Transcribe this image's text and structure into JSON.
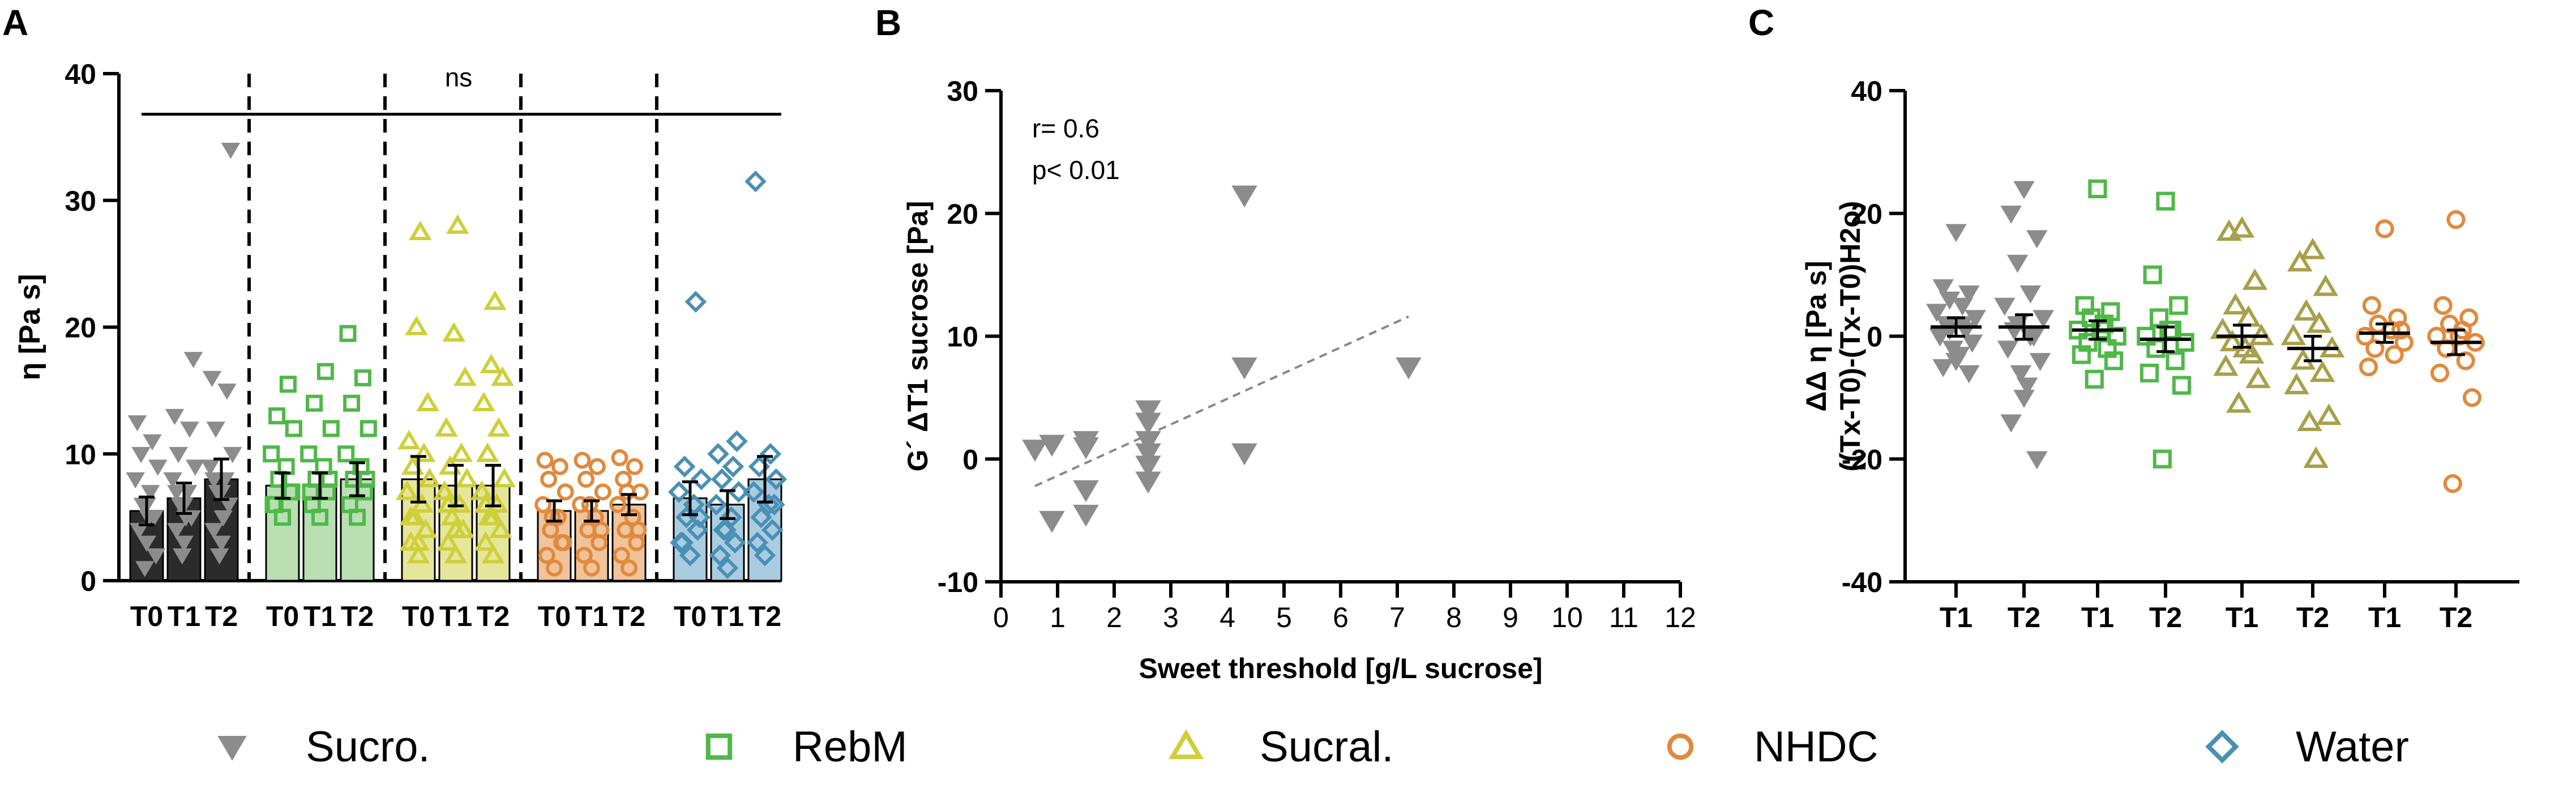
{
  "colors": {
    "sucrose": "#8c8c8c",
    "rebm": "#4fb848",
    "sucral": "#cfcf3a",
    "nhdc": "#e08a3e",
    "water": "#4a8fb5",
    "bar_sucrose": "#2b2b2b",
    "bar_rebm": "#b9dfb2",
    "bar_sucral": "#e6e69a",
    "bar_nhdc": "#f1c39a",
    "bar_water": "#a9cce0",
    "sucral_C": "#a8a04a"
  },
  "legend": [
    {
      "key": "sucrose",
      "label": "Sucro.",
      "marker": "triangle-down"
    },
    {
      "key": "rebm",
      "label": "RebM",
      "marker": "square"
    },
    {
      "key": "sucral",
      "label": "Sucral.",
      "marker": "triangle-up"
    },
    {
      "key": "nhdc",
      "label": "NHDC",
      "marker": "circle"
    },
    {
      "key": "water",
      "label": "Water",
      "marker": "diamond"
    }
  ],
  "chart_data": [
    {
      "panel": "A",
      "type": "bar",
      "ylabel": "η [Pa s]",
      "ylim": [
        0,
        40
      ],
      "yticks": [
        0,
        10,
        20,
        30,
        40
      ],
      "annotation": "ns",
      "groups": [
        {
          "key": "sucrose",
          "categories": [
            "T0",
            "T1",
            "T2"
          ],
          "means": [
            5.5,
            6.5,
            8.0
          ],
          "sem": [
            1.1,
            1.2,
            1.6
          ],
          "points": [
            [
              3,
              4,
              5,
              6,
              7,
              8,
              9,
              10,
              11,
              12.5,
              2,
              1,
              5,
              6,
              4
            ],
            [
              3,
              4,
              5,
              6,
              7,
              8,
              9,
              10,
              12,
              13,
              17.5,
              2,
              5,
              6,
              7
            ],
            [
              3,
              4,
              6,
              7,
              8,
              9,
              10,
              12,
              15,
              16,
              34,
              2,
              5,
              7,
              8
            ]
          ]
        },
        {
          "key": "rebm",
          "categories": [
            "T0",
            "T1",
            "T2"
          ],
          "means": [
            7.5,
            7.5,
            8.0
          ],
          "sem": [
            1.0,
            1.0,
            1.3
          ],
          "points": [
            [
              5,
              6,
              7,
              8,
              9,
              10,
              12,
              13,
              15.5,
              6,
              7
            ],
            [
              5,
              6,
              7,
              8,
              9,
              10,
              12,
              14,
              16.5,
              7,
              8
            ],
            [
              5,
              6,
              7,
              8,
              9,
              10,
              12,
              14,
              16,
              19.5,
              8
            ]
          ]
        },
        {
          "key": "sucral",
          "categories": [
            "T0",
            "T1",
            "T2"
          ],
          "means": [
            8.0,
            7.5,
            7.5
          ],
          "sem": [
            1.8,
            1.6,
            1.6
          ],
          "points": [
            [
              2,
              3,
              4,
              5,
              6,
              7,
              8,
              9,
              10,
              11,
              14,
              20,
              27.5,
              3,
              5
            ],
            [
              2,
              3,
              4,
              5,
              6,
              7,
              8,
              9,
              10,
              12,
              16,
              19.5,
              28,
              4,
              6
            ],
            [
              2,
              3,
              4,
              5,
              6,
              7,
              8,
              10,
              12,
              14,
              16,
              17,
              22,
              5,
              6
            ]
          ]
        },
        {
          "key": "nhdc",
          "categories": [
            "T0",
            "T1",
            "T2"
          ],
          "means": [
            5.5,
            5.5,
            6.0
          ],
          "sem": [
            0.8,
            0.8,
            0.8
          ],
          "points": [
            [
              1,
              2,
              3,
              4,
              5,
              6,
              7,
              8,
              9,
              9.5,
              3,
              5
            ],
            [
              1,
              2,
              3,
              4,
              5,
              6,
              7,
              8,
              9,
              9.5,
              4,
              6
            ],
            [
              1,
              2,
              3,
              4,
              5,
              6,
              7,
              8,
              9,
              9.7,
              4,
              7
            ]
          ]
        },
        {
          "key": "water",
          "categories": [
            "T0",
            "T1",
            "T2"
          ],
          "means": [
            6.5,
            6.0,
            8.0
          ],
          "sem": [
            1.3,
            1.1,
            1.8
          ],
          "points": [
            [
              2,
              3,
              4,
              5,
              6,
              7,
              8,
              9,
              22,
              3,
              5
            ],
            [
              1,
              2,
              3,
              4,
              5,
              6,
              7,
              8,
              9,
              10,
              11,
              4
            ],
            [
              2,
              3,
              4,
              5,
              6,
              7,
              8,
              9,
              10,
              31.5,
              6
            ]
          ]
        }
      ]
    },
    {
      "panel": "B",
      "type": "scatter",
      "xlabel": "Sweet threshold [g/L sucrose]",
      "ylabel": "G´ ΔT1 sucrose [Pa]",
      "xlim": [
        0,
        12
      ],
      "ylim": [
        -10,
        30
      ],
      "xticks": [
        0,
        1,
        2,
        3,
        4,
        5,
        6,
        7,
        8,
        9,
        10,
        11,
        12
      ],
      "yticks": [
        -10,
        0,
        10,
        20,
        30
      ],
      "stat_r": "r= 0.6",
      "stat_p": "p< 0.01",
      "points": [
        [
          0.6,
          0.8
        ],
        [
          0.9,
          1.2
        ],
        [
          0.9,
          -5.0
        ],
        [
          1.5,
          1.5
        ],
        [
          1.5,
          1.0
        ],
        [
          1.5,
          -2.5
        ],
        [
          1.5,
          -4.5
        ],
        [
          2.6,
          4.0
        ],
        [
          2.6,
          3.0
        ],
        [
          2.6,
          1.5
        ],
        [
          2.6,
          0.5
        ],
        [
          2.6,
          -0.5
        ],
        [
          2.6,
          -1.8
        ],
        [
          4.3,
          21.5
        ],
        [
          4.3,
          7.5
        ],
        [
          4.3,
          0.5
        ],
        [
          7.2,
          7.5
        ]
      ],
      "regression": {
        "x": [
          0.6,
          7.2
        ],
        "y": [
          -2.2,
          11.6
        ]
      }
    },
    {
      "panel": "C",
      "type": "scatter",
      "ylabel_line1": "ΔΔ η [Pa s]",
      "ylabel_line2": "((Tx-T0)-(Tx-T0)H2o)",
      "ylim": [
        -40,
        40
      ],
      "yticks": [
        -40,
        -20,
        0,
        20,
        40
      ],
      "groups": [
        {
          "key": "sucrose",
          "categories": [
            "T1",
            "T2"
          ],
          "means": [
            1.5,
            1.5
          ],
          "sem": [
            1.5,
            2.0
          ],
          "points": [
            [
              17,
              8,
              7,
              6,
              5,
              4,
              3,
              2,
              1,
              0,
              -1,
              -2,
              -3,
              -4,
              -5,
              -6,
              1,
              2
            ],
            [
              24,
              20,
              16,
              12,
              7,
              5,
              3,
              1,
              0,
              -2,
              -4,
              -6,
              -8,
              -10,
              -14,
              -20,
              2,
              0
            ]
          ]
        },
        {
          "key": "rebm",
          "categories": [
            "T1",
            "T2"
          ],
          "means": [
            1.0,
            -0.5
          ],
          "sem": [
            1.5,
            2.0
          ],
          "points": [
            [
              24,
              5,
              4,
              3,
              2,
              1,
              0,
              -1,
              -2,
              -3,
              -4,
              -7,
              1
            ],
            [
              22,
              10,
              5,
              3,
              1,
              0,
              -1,
              -2,
              -4,
              -6,
              -8,
              -20,
              1
            ]
          ]
        },
        {
          "key": "sucral",
          "categories": [
            "T1",
            "T2"
          ],
          "means": [
            0,
            -2
          ],
          "sem": [
            1.8,
            2.0
          ],
          "points": [
            [
              17.5,
              17,
              9,
              5,
              3,
              1,
              0,
              -1,
              -3,
              -5,
              -7,
              -11,
              -2
            ],
            [
              14,
              12,
              8,
              4,
              2,
              0,
              -2,
              -4,
              -6,
              -8,
              -13,
              -14,
              -20
            ]
          ]
        },
        {
          "key": "nhdc",
          "categories": [
            "T1",
            "T2"
          ],
          "means": [
            0.5,
            -1
          ],
          "sem": [
            1.5,
            2.0
          ],
          "points": [
            [
              17.5,
              5,
              3,
              2,
              1,
              0,
              -1,
              -2,
              -3,
              -5,
              1
            ],
            [
              19,
              5,
              3,
              2,
              1,
              0,
              -1,
              -2,
              -4,
              -6,
              -10,
              -24,
              0
            ]
          ]
        }
      ]
    }
  ],
  "panels": {
    "a": "A",
    "b": "B",
    "c": "C"
  }
}
